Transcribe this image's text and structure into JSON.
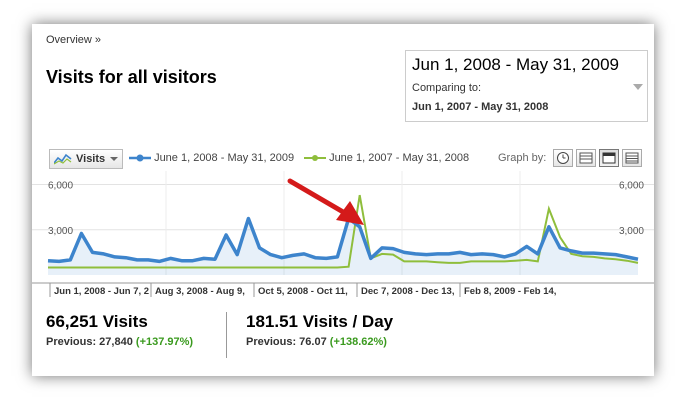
{
  "breadcrumb": "Overview »",
  "title": "Visits for all visitors",
  "date_picker": {
    "range": "Jun 1, 2008 - May 31, 2009",
    "compare_label": "Comparing to:",
    "compare_range": "Jun 1, 2007 - May 31, 2008"
  },
  "toolbar": {
    "metric": "Visits",
    "graph_by_label": "Graph by:",
    "graph_by_buttons": [
      "clock-icon",
      "day-icon",
      "week-icon",
      "month-icon"
    ],
    "active_graph_by": "week-icon"
  },
  "colors": {
    "current": "#3d84cc",
    "previous": "#8fbe3c",
    "arrow": "#d41a1a",
    "delta": "#3a9a1e"
  },
  "chart_data": {
    "type": "line",
    "y_ticks_left": [
      "6,000",
      "3,000"
    ],
    "y_ticks_right": [
      "6,000",
      "3,000"
    ],
    "ylim": [
      0,
      6500
    ],
    "grid": true,
    "legend_position": "top",
    "x_labels": [
      "Jun 1, 2008 - Jun 7, 2",
      "Aug 3, 2008 - Aug 9,",
      "Oct 5, 2008 - Oct 11,",
      "Dec 7, 2008 - Dec 13,",
      "Feb 8, 2009 - Feb 14,"
    ],
    "series": [
      {
        "name": "June 1, 2008 - May 31, 2009",
        "values": [
          950,
          900,
          1000,
          2750,
          1500,
          1400,
          1200,
          1150,
          1000,
          1000,
          900,
          1100,
          950,
          950,
          1100,
          1050,
          2650,
          1350,
          3750,
          1800,
          1350,
          1150,
          1300,
          1400,
          1150,
          1100,
          1200,
          3750,
          3200,
          1100,
          1800,
          1750,
          1500,
          1400,
          1350,
          1400,
          1400,
          1500,
          1350,
          1400,
          1350,
          1200,
          1400,
          1900,
          1400,
          3200,
          1800,
          1600,
          1450,
          1450,
          1400,
          1350,
          1200,
          1050
        ]
      },
      {
        "name": "June 1, 2007 - May 31, 2008",
        "values": [
          500,
          500,
          500,
          500,
          500,
          500,
          500,
          500,
          500,
          500,
          500,
          500,
          500,
          500,
          500,
          500,
          500,
          500,
          500,
          500,
          500,
          500,
          500,
          500,
          500,
          500,
          500,
          550,
          5300,
          1100,
          1400,
          1350,
          900,
          900,
          900,
          850,
          800,
          800,
          900,
          900,
          900,
          900,
          950,
          1000,
          900,
          4400,
          2500,
          1400,
          1250,
          1200,
          1100,
          1050,
          950,
          800
        ]
      }
    ]
  },
  "stats": [
    {
      "value": "66,251 Visits",
      "previous_label": "Previous: 27,840",
      "delta": "(+137.97%)"
    },
    {
      "value": "181.51 Visits / Day",
      "previous_label": "Previous: 76.07",
      "delta": "(+138.62%)"
    }
  ]
}
